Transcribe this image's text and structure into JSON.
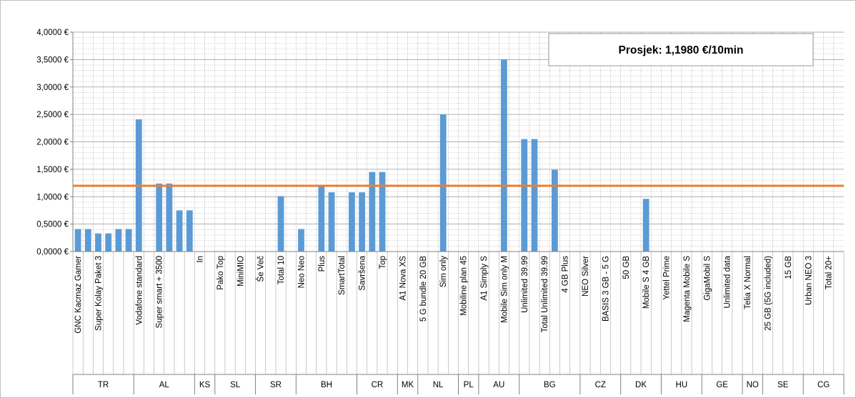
{
  "chart_data": {
    "type": "bar",
    "ylim": [
      0,
      4
    ],
    "yticks": [
      0,
      0.5,
      1,
      1.5,
      2,
      2.5,
      3,
      3.5,
      4
    ],
    "ytick_labels": [
      "0,0000 €",
      "0,5000 €",
      "1,0000 €",
      "1,5000 €",
      "2,0000 €",
      "2,5000 €",
      "3,0000 €",
      "3,5000 €",
      "4,0000 €"
    ],
    "grid": true,
    "bar_color": "#5b9bd5",
    "average_line": {
      "value": 1.198,
      "color": "#ed7d31"
    },
    "annotation": "Prosjek: 1,1980 €/10min",
    "annotation_position": "top-right",
    "groups": [
      {
        "label": "TR",
        "count": 6
      },
      {
        "label": "AL",
        "count": 6
      },
      {
        "label": "KS",
        "count": 2
      },
      {
        "label": "SL",
        "count": 4
      },
      {
        "label": "SR",
        "count": 4
      },
      {
        "label": "BH",
        "count": 6
      },
      {
        "label": "CR",
        "count": 4
      },
      {
        "label": "MK",
        "count": 2
      },
      {
        "label": "NL",
        "count": 4
      },
      {
        "label": "PL",
        "count": 2
      },
      {
        "label": "AU",
        "count": 4
      },
      {
        "label": "BG",
        "count": 6
      },
      {
        "label": "CZ",
        "count": 4
      },
      {
        "label": "DK",
        "count": 4
      },
      {
        "label": "HU",
        "count": 4
      },
      {
        "label": "GE",
        "count": 4
      },
      {
        "label": "NO",
        "count": 2
      },
      {
        "label": "SE",
        "count": 4
      },
      {
        "label": "CG",
        "count": 4
      }
    ],
    "categories": [
      "GNC Kacmaz Gamer",
      "",
      "Super Kolay Paket 3",
      "",
      "",
      "",
      "Vodafone standard",
      "",
      "Super smart + 3500",
      "",
      "",
      "",
      "In",
      "",
      "Pako Top",
      "",
      "MiniMIO",
      "",
      "Še Več",
      "",
      "Total 10",
      "",
      "Neo Neo",
      "",
      "Plus",
      "",
      "SmartTotal",
      "",
      "Savršena",
      "",
      "Top",
      "",
      "A1 Nova XS",
      "",
      "5 G bundle 20 GB",
      "",
      "Sim only",
      "",
      "Mobiline plan 45",
      "",
      "A1 Simply S",
      "",
      "Mobile Sim only M",
      "",
      "Unlimited  39.99",
      "",
      "Total Unlimited 39.99",
      "",
      "4 GB Plus",
      "",
      "NEO Silver",
      "",
      "BASIS 3 GB - 5 G",
      "",
      "50 GB",
      "",
      "Mobile S 4 GB",
      "",
      "Yettel Prime",
      "",
      "Magenta Mobile S",
      "",
      "GigaMobil S",
      "",
      "Unlimited data",
      "",
      "Telia X Normal",
      "",
      "25 GB (5G included)",
      "",
      "15 GB",
      "",
      "Urban NEO 3",
      "",
      "Total 20+",
      ""
    ],
    "values": [
      0.41,
      0.41,
      0.33,
      0.33,
      0.41,
      0.41,
      2.41,
      0,
      1.24,
      1.24,
      0.75,
      0.75,
      0,
      0,
      0,
      0,
      0,
      0,
      0,
      0,
      1.01,
      0,
      0.41,
      0,
      1.18,
      1.08,
      0,
      1.08,
      1.08,
      1.45,
      1.45,
      0,
      0,
      0,
      0,
      0,
      2.5,
      0,
      0,
      0,
      0,
      0,
      3.5,
      0,
      2.05,
      2.05,
      0,
      1.49,
      0,
      0,
      0,
      0,
      0,
      0,
      0,
      0,
      0.96,
      0,
      0,
      0,
      0,
      0,
      0,
      0,
      0,
      0,
      0,
      0,
      0,
      0,
      0,
      0,
      0,
      0,
      0,
      0
    ]
  }
}
